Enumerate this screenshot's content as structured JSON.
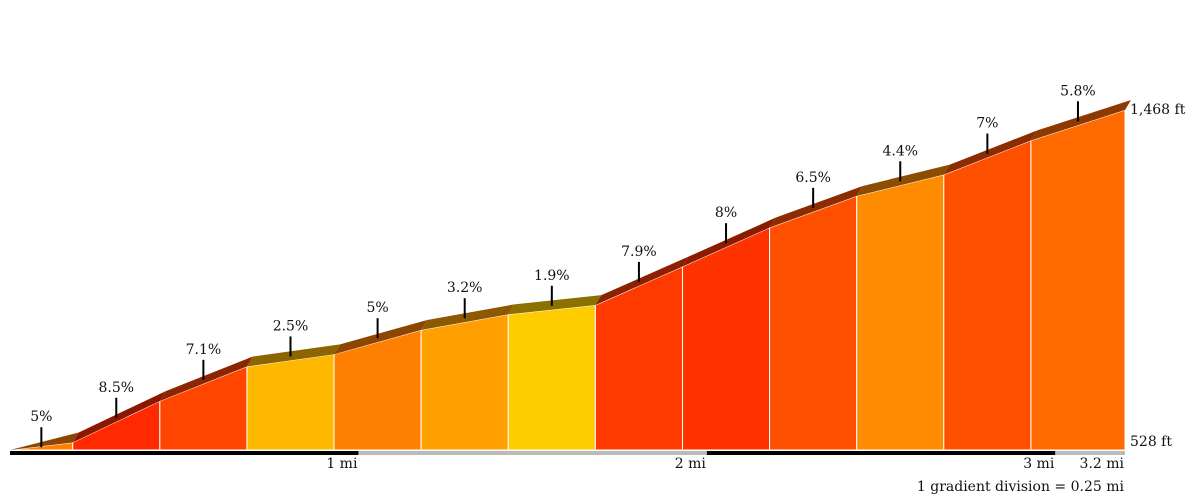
{
  "chart_data": {
    "type": "area",
    "title": "",
    "xlabel": "",
    "ylabel": "",
    "x_unit": "mi",
    "total_distance_mi": 3.2,
    "segment_length_mi": 0.25,
    "elevation_labels": {
      "top": "1,468 ft",
      "bottom": "528 ft"
    },
    "elevation_range_ft": [
      528,
      1468
    ],
    "mile_ticks": [
      {
        "mi": 1,
        "label": "1 mi"
      },
      {
        "mi": 2,
        "label": "2 mi"
      },
      {
        "mi": 3,
        "label": "3 mi"
      },
      {
        "mi": 3.2,
        "label": "3.2 mi"
      }
    ],
    "note": "1 gradient division = 0.25 mi",
    "segments": [
      {
        "end_mi": 0.18,
        "grade_pct": 5,
        "label": "5%",
        "color": "#FF8000"
      },
      {
        "end_mi": 0.43,
        "grade_pct": 8.5,
        "label": "8.5%",
        "color": "#FF2A00"
      },
      {
        "end_mi": 0.68,
        "grade_pct": 7.1,
        "label": "7.1%",
        "color": "#FF4500"
      },
      {
        "end_mi": 0.93,
        "grade_pct": 2.5,
        "label": "2.5%",
        "color": "#FFB800"
      },
      {
        "end_mi": 1.18,
        "grade_pct": 5,
        "label": "5%",
        "color": "#FF8000"
      },
      {
        "end_mi": 1.43,
        "grade_pct": 3.2,
        "label": "3.2%",
        "color": "#FFA000"
      },
      {
        "end_mi": 1.68,
        "grade_pct": 1.9,
        "label": "1.9%",
        "color": "#FFCC00"
      },
      {
        "end_mi": 1.93,
        "grade_pct": 7.9,
        "label": "7.9%",
        "color": "#FF3A00"
      },
      {
        "end_mi": 2.18,
        "grade_pct": 8,
        "label": "8%",
        "color": "#FF3300"
      },
      {
        "end_mi": 2.43,
        "grade_pct": 6.5,
        "label": "6.5%",
        "color": "#FF5000"
      },
      {
        "end_mi": 2.68,
        "grade_pct": 4.4,
        "label": "4.4%",
        "color": "#FF8C00"
      },
      {
        "end_mi": 2.93,
        "grade_pct": 7,
        "label": "7%",
        "color": "#FF5000"
      },
      {
        "end_mi": 3.2,
        "grade_pct": 5.8,
        "label": "5.8%",
        "color": "#FF6A00"
      }
    ]
  }
}
